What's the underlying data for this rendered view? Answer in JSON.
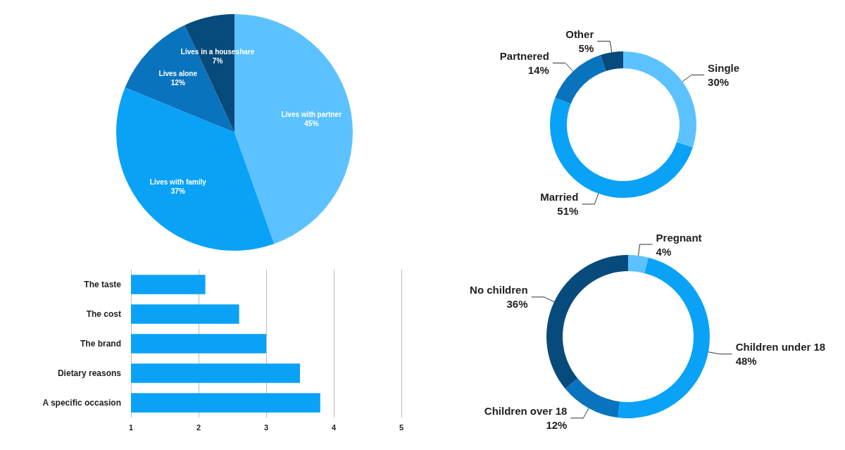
{
  "chart_data": [
    {
      "type": "pie",
      "categories": [
        "Lives with partner",
        "Lives with family",
        "Lives alone",
        "Lives in a houseshare"
      ],
      "values": [
        45,
        37,
        12,
        7
      ],
      "value_labels": [
        "45%",
        "37%",
        "12%",
        "7%"
      ],
      "colors": [
        "#5cc2ff",
        "#0aa2f7",
        "#0a73bd",
        "#074a7c"
      ]
    },
    {
      "type": "donut",
      "categories": [
        "Single",
        "Married",
        "Partnered",
        "Other"
      ],
      "values": [
        30,
        51,
        14,
        5
      ],
      "value_labels": [
        "30%",
        "51%",
        "14%",
        "5%"
      ],
      "colors": [
        "#5cc2ff",
        "#0aa2f7",
        "#0a73bd",
        "#074a7c"
      ]
    },
    {
      "type": "bar",
      "orientation": "horizontal",
      "categories": [
        "The taste",
        "The cost",
        "The brand",
        "Dietary reasons",
        "A specific occasion"
      ],
      "values": [
        2.1,
        2.6,
        3.0,
        3.5,
        3.8
      ],
      "color": "#0aa2f7",
      "xlim": [
        1,
        5
      ],
      "xticks": [
        1,
        2,
        3,
        4,
        5
      ],
      "grid": "x"
    },
    {
      "type": "donut",
      "categories": [
        "Pregnant",
        "Children under 18",
        "Children over 18",
        "No children"
      ],
      "values": [
        4,
        48,
        12,
        36
      ],
      "value_labels": [
        "4%",
        "48%",
        "12%",
        "36%"
      ],
      "colors": [
        "#5cc2ff",
        "#0aa2f7",
        "#0a73bd",
        "#074a7c"
      ]
    }
  ]
}
